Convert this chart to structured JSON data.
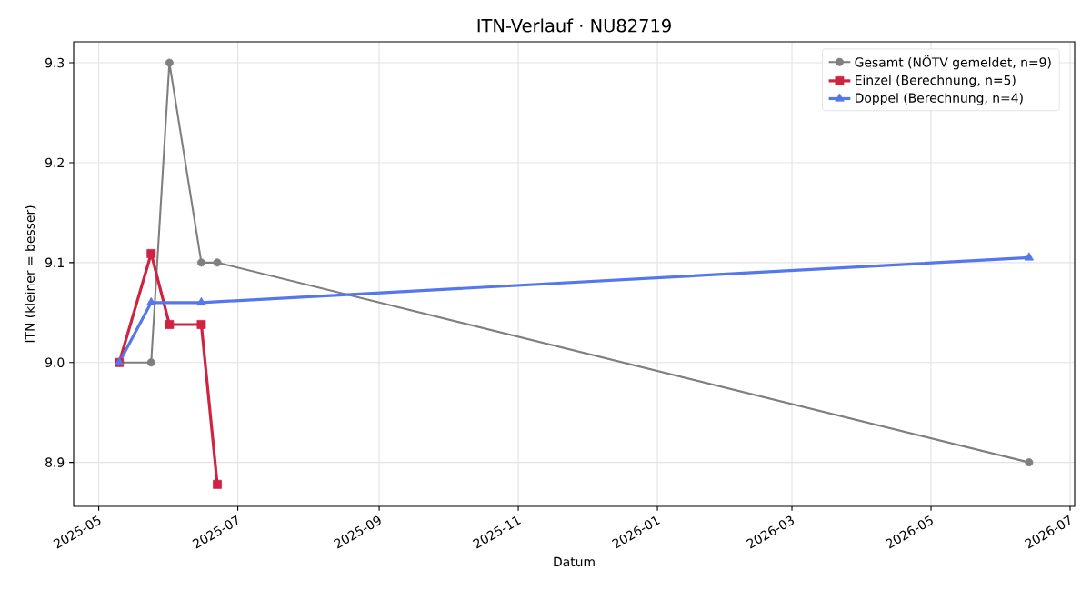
{
  "chart_data": {
    "type": "line",
    "title": "ITN-Verlauf · NU82719",
    "xlabel": "Datum",
    "ylabel": "ITN  (kleiner = besser)",
    "series": [
      {
        "name": "Gesamt (NÖTV gemeldet, n=9)",
        "color": "#7f7f7f",
        "marker": "circle",
        "x": [
          "2025-05-10",
          "2025-05-24",
          "2025-06-01",
          "2025-06-15",
          "2025-06-22",
          "2026-06-13"
        ],
        "values": [
          9.0,
          9.0,
          9.3,
          9.1,
          9.1,
          8.9
        ]
      },
      {
        "name": "Einzel (Berechnung, n=5)",
        "color": "#cf2342",
        "marker": "square",
        "x": [
          "2025-05-10",
          "2025-05-24",
          "2025-06-01",
          "2025-06-15",
          "2025-06-22"
        ],
        "values": [
          9.0,
          9.109,
          9.038,
          9.038,
          8.878
        ]
      },
      {
        "name": "Doppel (Berechnung, n=4)",
        "color": "#5577ee",
        "marker": "triangle",
        "x": [
          "2025-05-10",
          "2025-05-24",
          "2025-06-15",
          "2026-06-13"
        ],
        "values": [
          9.0,
          9.06,
          9.06,
          9.105
        ]
      }
    ],
    "xlim": [
      "2025-04-20",
      "2026-07-03"
    ],
    "xticks": [
      "2025-05",
      "2025-07",
      "2025-09",
      "2025-11",
      "2026-01",
      "2026-03",
      "2026-05",
      "2026-07"
    ],
    "ylim": [
      8.856,
      9.321
    ],
    "yticks": [
      8.9,
      {
        "value": 9.0,
        "label": "9.0"
      },
      9.1,
      9.2,
      9.3
    ],
    "grid": true,
    "legend": "top right"
  }
}
